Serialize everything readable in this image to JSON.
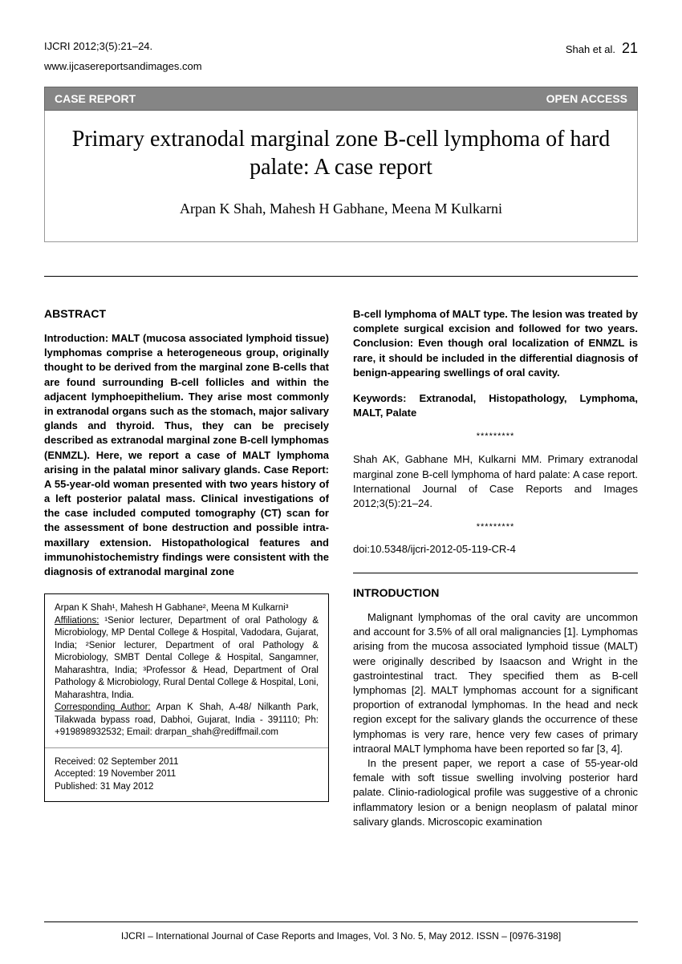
{
  "header": {
    "citation_short": "IJCRI 2012;3(5):21–24.",
    "author_short": "Shah et al.",
    "page_number": "21",
    "website": "www.ijcasereportsandimages.com"
  },
  "banner": {
    "left": "CASE REPORT",
    "right": "OPEN ACCESS"
  },
  "title": "Primary extranodal marginal zone B-cell lymphoma of hard palate: A case report",
  "authors": "Arpan K Shah, Mahesh H Gabhane, Meena M Kulkarni",
  "abstract": {
    "heading": "ABSTRACT",
    "text_left": "Introduction: MALT (mucosa associated lymphoid tissue) lymphomas comprise a heterogeneous group, originally thought to be derived from the marginal zone B-cells that are found surrounding B-cell follicles and within the adjacent lymphoepithelium. They arise most commonly in extranodal organs such as the stomach, major salivary glands and thyroid. Thus, they can be precisely described as extranodal marginal zone B-cell lymphomas (ENMZL). Here, we report a case of MALT lymphoma arising in the palatal minor salivary glands. Case Report: A 55-year-old woman presented with two years history of a left posterior palatal mass. Clinical investigations of the case included computed tomography (CT) scan for the assessment of bone destruction and possible intra-maxillary extension. Histopathological features and immunohistochemistry findings were consistent with the diagnosis of extranodal marginal zone",
    "text_right": "B-cell lymphoma of MALT type. The lesion was treated by complete surgical excision and followed for two years. Conclusion: Even though oral localization of ENMZL is rare, it should be included in the differential diagnosis of benign-appearing swellings of oral cavity."
  },
  "keywords": {
    "label": "Keywords:",
    "text": "Extranodal, Histopathology, Lymphoma, MALT, Palate"
  },
  "separator": "*********",
  "citation_full": "Shah AK, Gabhane MH, Kulkarni MM. Primary extranodal marginal zone B-cell lymphoma of hard palate: A case report. International Journal of Case Reports and Images 2012;3(5):21–24.",
  "doi": "doi:10.5348/ijcri-2012-05-119-CR-4",
  "introduction": {
    "heading": "INTRODUCTION",
    "para1": "Malignant lymphomas of the oral cavity are uncommon and account for 3.5% of all oral malignancies [1]. Lymphomas arising from the mucosa associated lymphoid tissue (MALT) were originally described by Isaacson and Wright in the gastrointestinal tract. They specified them as B-cell lymphomas [2]. MALT lymphomas account for a significant proportion of extranodal lymphomas. In the head and neck region except for the salivary glands the occurrence of these lymphomas is very rare, hence very few cases of primary intraoral MALT lymphoma have been reported so far [3, 4].",
    "para2": "In the present paper, we report a case of 55-year-old female with soft tissue swelling involving posterior hard palate. Clinio-radiological profile was suggestive of a chronic inflammatory lesion or a benign neoplasm of palatal minor salivary glands. Microscopic examination"
  },
  "affiliations": {
    "authors_line": "Arpan K Shah¹, Mahesh H Gabhane², Meena M Kulkarni³",
    "affil_label": "Affiliations:",
    "affil_text": "¹Senior lecturer, Department of oral Pathology & Microbiology, MP Dental College & Hospital, Vadodara, Gujarat, India; ²Senior lecturer, Department of oral Pathology & Microbiology, SMBT Dental College & Hospital, Sangamner, Maharashtra, India; ³Professor & Head, Department of Oral Pathology & Microbiology, Rural Dental College & Hospital, Loni, Maharashtra, India.",
    "corr_label": "Corresponding Author:",
    "corr_text": "Arpan K Shah, A-48/ Nilkanth Park, Tilakwada bypass road, Dabhoi, Gujarat, India - 391110; Ph: +919898932532; Email: drarpan_shah@rediffmail.com",
    "received": "Received: 02 September 2011",
    "accepted": "Accepted: 19 November 2011",
    "published": "Published: 31 May 2012"
  },
  "footer": "IJCRI – International Journal of Case Reports and Images, Vol. 3 No. 5, May 2012. ISSN – [0976-3198]"
}
